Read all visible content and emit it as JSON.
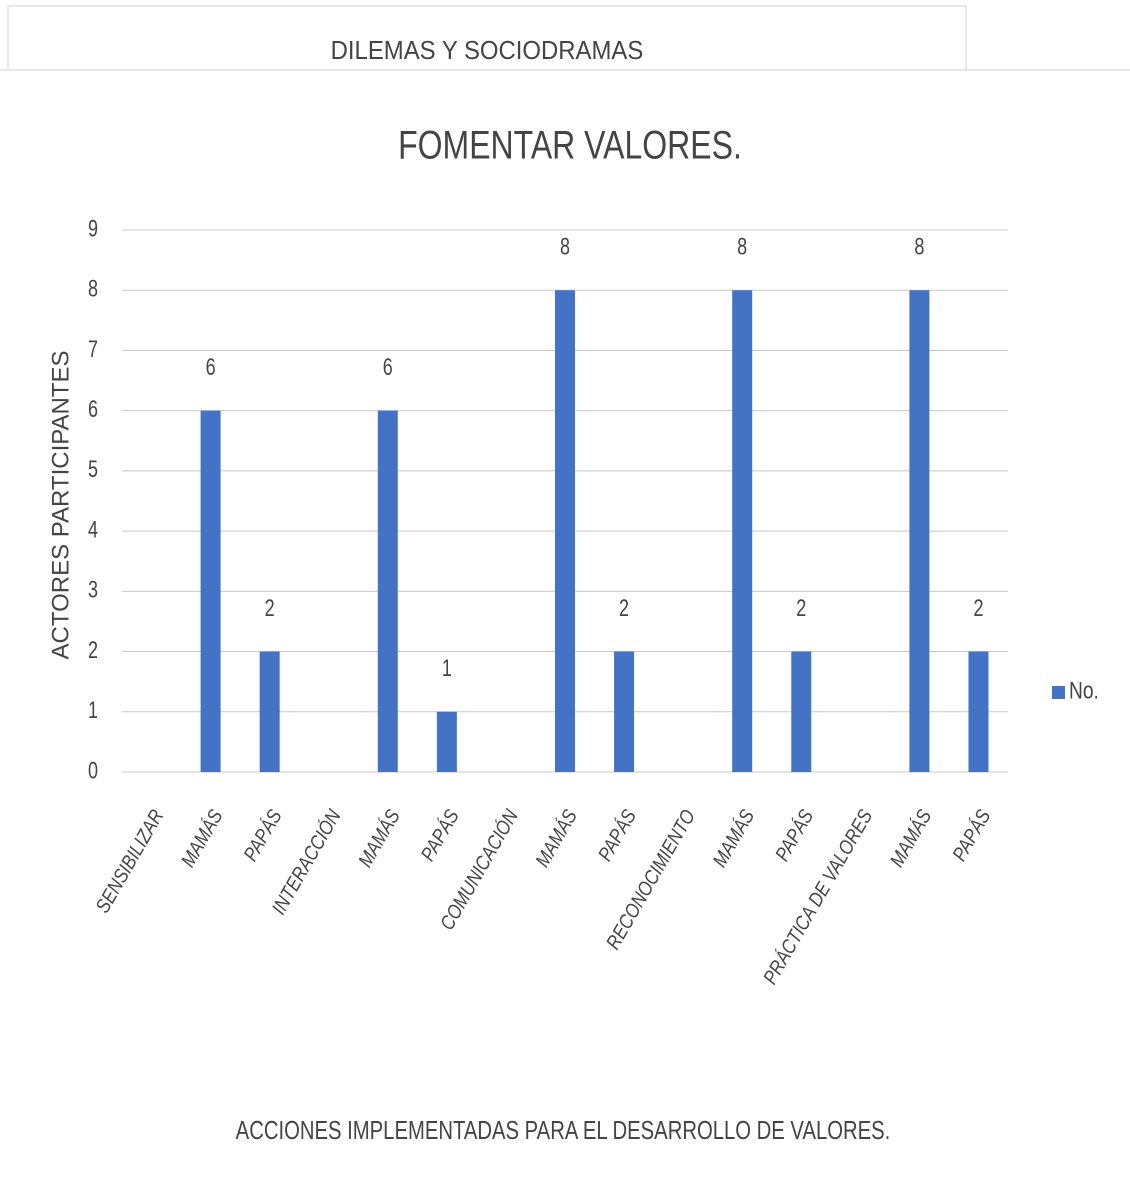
{
  "header": "DILEMAS Y SOCIODRAMAS",
  "chart_data": {
    "type": "bar",
    "title": "FOMENTAR VALORES.",
    "xlabel": "ACCIONES  IMPLEMENTADAS  PARA EL  DESARROLLO  DE VALORES.",
    "ylabel": "ACTORES  PARTICIPANTES",
    "categories": [
      "SENSIBILIZAR",
      "MAMÁS",
      "PAPÁS",
      "INTERACCIÓN",
      "MAMÁS",
      "PAPÁS",
      "COMUNICACIÓN",
      "MAMÁS",
      "PAPÁS",
      "RECONOCIMIENTO",
      "MAMÁS",
      "PAPÁS",
      "PRÁCTICA DE VALORES",
      "MAMÁS",
      "PAPÁS"
    ],
    "series": [
      {
        "name": "No.",
        "color": "#4472c4",
        "values": [
          null,
          6,
          2,
          null,
          6,
          1,
          null,
          8,
          2,
          null,
          8,
          2,
          null,
          8,
          2
        ]
      }
    ],
    "ylim": [
      0,
      9
    ],
    "yticks": [
      0,
      1,
      2,
      3,
      4,
      5,
      6,
      7,
      8,
      9
    ],
    "grid": true,
    "legend": "right"
  }
}
